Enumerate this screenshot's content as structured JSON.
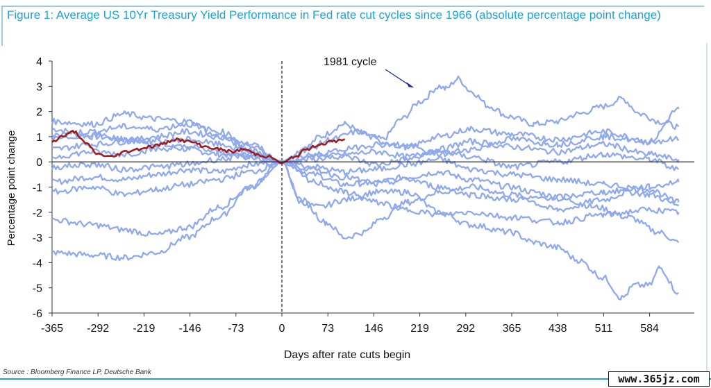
{
  "figure": {
    "title": "Figure 1: Average US 10Yr Treasury Yield Performance in Fed rate cut cycles since 1966 (absolute percentage point change)",
    "source": "Source : Bloomberg Finance LP, Deutsche Bank",
    "watermark": "www.365jz.com"
  },
  "colors": {
    "title": "#1ea3d6",
    "cycle_lines": "#8fa9ec",
    "average_line": "#a01c1c",
    "annotation_arrow": "#1f2a9e"
  },
  "chart_data": {
    "type": "line",
    "title": "",
    "xlabel": "Days after rate cuts begin",
    "ylabel": "Percentage point change",
    "xlim": [
      -380,
      635
    ],
    "ylim": [
      -6,
      4
    ],
    "x_ticks": [
      -365,
      -292,
      -219,
      -146,
      -73,
      0,
      73,
      146,
      219,
      292,
      365,
      438,
      511,
      584
    ],
    "x_tick_labels": [
      "-365",
      "-292",
      "-219",
      "-146",
      "-73",
      "0",
      "73",
      "146",
      "219",
      "292",
      "365",
      "438",
      "511",
      "584"
    ],
    "y_ticks": [
      4,
      3,
      2,
      1,
      0,
      -1,
      -2,
      -3,
      -4,
      -5,
      -6
    ],
    "y_tick_labels": [
      "4",
      "3",
      "2",
      "1",
      "0",
      "-1",
      "-2",
      "-3",
      "-4",
      "-5",
      "-6"
    ],
    "reference_lines": [
      {
        "axis": "x",
        "value": 0,
        "style": "dashed"
      },
      {
        "axis": "y",
        "value": 0,
        "style": "solid"
      }
    ],
    "annotations": [
      {
        "text": "1981 cycle",
        "points_to": {
          "x": 210,
          "y": 3.0
        }
      }
    ],
    "legend": "none",
    "grid": false,
    "series": [
      {
        "x": [
          -365,
          -300,
          -250,
          -200,
          -150,
          -100,
          -50,
          0,
          40,
          60,
          100,
          130,
          160,
          190,
          220,
          250,
          260,
          280,
          300,
          330,
          360,
          400,
          438,
          470,
          511,
          540,
          570,
          600,
          630
        ],
        "values": [
          1.3,
          1.0,
          0.9,
          0.7,
          0.5,
          0.3,
          0.2,
          0,
          0.6,
          1.0,
          1.5,
          1.1,
          0.9,
          1.7,
          2.4,
          3.0,
          2.9,
          3.3,
          2.8,
          2.2,
          1.8,
          1.5,
          1.6,
          1.9,
          2.2,
          2.5,
          1.9,
          1.6,
          1.4
        ]
      },
      {
        "x": [
          -365,
          -300,
          -250,
          -200,
          -150,
          -100,
          -50,
          0,
          50,
          100,
          150,
          200,
          250,
          300,
          365,
          400,
          450,
          500,
          550,
          600,
          630
        ],
        "values": [
          -0.8,
          -0.6,
          -0.7,
          -0.5,
          -0.3,
          -0.4,
          -0.1,
          0,
          -0.5,
          -0.9,
          -0.8,
          -0.6,
          -0.4,
          -0.7,
          -1.0,
          -1.2,
          -1.5,
          -1.8,
          -2.2,
          -2.8,
          -3.2
        ]
      },
      {
        "x": [
          -365,
          -300,
          -250,
          -200,
          -150,
          -100,
          -50,
          0,
          30,
          60,
          100,
          150,
          200,
          250,
          300,
          365,
          400,
          438,
          470,
          511,
          540,
          560,
          584,
          600,
          630
        ],
        "values": [
          -3.6,
          -3.7,
          -3.8,
          -3.6,
          -3.0,
          -2.2,
          -1.0,
          0,
          -1.6,
          -1.8,
          -1.5,
          -1.2,
          -1.2,
          -2.0,
          -2.5,
          -2.8,
          -3.2,
          -3.4,
          -3.9,
          -4.6,
          -5.4,
          -4.9,
          -4.9,
          -4.2,
          -5.2
        ]
      },
      {
        "x": [
          -365,
          -300,
          -250,
          -200,
          -150,
          -100,
          -50,
          0,
          30,
          70,
          100,
          130,
          160,
          200,
          250,
          300,
          365,
          438,
          511,
          550,
          584,
          630
        ],
        "values": [
          -2.3,
          -2.5,
          -2.7,
          -2.9,
          -2.6,
          -1.8,
          -1.0,
          0,
          -1.5,
          -2.4,
          -3.0,
          -2.8,
          -2.2,
          -1.6,
          -1.2,
          -1.0,
          -1.3,
          -1.9,
          -1.5,
          -1.2,
          -1.3,
          -1.7
        ]
      },
      {
        "x": [
          -365,
          -300,
          -250,
          -200,
          -150,
          -100,
          -50,
          0,
          40,
          80,
          120,
          160,
          200,
          250,
          300,
          365,
          438,
          511,
          584,
          630
        ],
        "values": [
          1.6,
          1.5,
          1.9,
          1.7,
          1.6,
          1.0,
          0.5,
          0,
          0.5,
          0.9,
          1.2,
          0.8,
          0.6,
          1.0,
          1.3,
          1.1,
          0.9,
          1.2,
          0.8,
          2.1
        ]
      },
      {
        "x": [
          -365,
          -300,
          -250,
          -200,
          -150,
          -100,
          -50,
          0,
          50,
          100,
          150,
          200,
          250,
          300,
          365,
          438,
          511,
          584,
          630
        ],
        "values": [
          0.5,
          0.7,
          0.8,
          1.0,
          1.2,
          1.0,
          0.6,
          0,
          0.1,
          0.3,
          0.4,
          0.2,
          0.5,
          0.8,
          0.6,
          0.4,
          0.7,
          0.3,
          0.1
        ]
      },
      {
        "x": [
          -365,
          -300,
          -250,
          -200,
          -150,
          -100,
          -50,
          0,
          50,
          100,
          150,
          200,
          250,
          300,
          365,
          438,
          511,
          584,
          630
        ],
        "values": [
          -1.2,
          -1.0,
          -1.3,
          -1.1,
          -0.9,
          -0.7,
          -0.4,
          0,
          -0.2,
          -0.4,
          -0.3,
          -0.1,
          0.1,
          -0.3,
          -0.5,
          -0.7,
          -0.9,
          -1.1,
          -1.6
        ]
      },
      {
        "x": [
          -365,
          -300,
          -250,
          -200,
          -150,
          -100,
          -50,
          0,
          50,
          100,
          150,
          200,
          250,
          300,
          365,
          438,
          511,
          584,
          630
        ],
        "values": [
          0.2,
          0.4,
          0.3,
          0.5,
          0.6,
          0.4,
          0.2,
          0,
          0.3,
          0.2,
          -0.1,
          0.1,
          0.4,
          0.2,
          -0.2,
          0.0,
          0.3,
          0.1,
          -0.3
        ]
      },
      {
        "x": [
          -365,
          -300,
          -250,
          -200,
          -150,
          -100,
          -50,
          0,
          50,
          100,
          150,
          200,
          250,
          300,
          365,
          438,
          511,
          584,
          630
        ],
        "values": [
          1.1,
          1.2,
          1.4,
          1.3,
          1.5,
          1.2,
          0.7,
          0,
          -0.3,
          -0.6,
          -0.9,
          -0.7,
          -1.0,
          -1.3,
          -1.5,
          -1.4,
          -1.2,
          -1.0,
          -0.8
        ]
      },
      {
        "x": [
          -365,
          -300,
          -250,
          -200,
          -150,
          -100,
          -50,
          0,
          50,
          100,
          150,
          200,
          250,
          300,
          365,
          438,
          511,
          584,
          630
        ],
        "values": [
          -0.2,
          -0.1,
          -0.3,
          -0.2,
          -0.1,
          0.1,
          0.3,
          0,
          -0.8,
          -1.2,
          -1.6,
          -1.9,
          -2.1,
          -2.0,
          -2.2,
          -2.4,
          -2.1,
          -1.9,
          -2.0
        ]
      },
      {
        "x": [
          -365,
          -300,
          -250,
          -200,
          -150,
          -100,
          -50,
          0,
          50,
          100,
          150,
          200,
          250,
          300,
          365,
          438,
          511,
          584,
          630
        ],
        "values": [
          0.9,
          1.1,
          0.9,
          0.8,
          0.9,
          0.7,
          0.4,
          0,
          0.2,
          0.5,
          0.7,
          0.6,
          0.3,
          0.5,
          0.9,
          0.7,
          1.0,
          0.8,
          0.9
        ]
      },
      {
        "name": "Average",
        "x": [
          -365,
          -350,
          -330,
          -310,
          -292,
          -270,
          -250,
          -230,
          -210,
          -190,
          -170,
          -146,
          -120,
          -100,
          -80,
          -60,
          -40,
          -20,
          0,
          20,
          40,
          60,
          80,
          100
        ],
        "values": [
          0.8,
          1.0,
          1.2,
          0.7,
          0.3,
          0.2,
          0.4,
          0.5,
          0.6,
          0.7,
          0.9,
          0.8,
          0.6,
          0.5,
          0.4,
          0.5,
          0.3,
          0.2,
          -0.05,
          0.2,
          0.5,
          0.7,
          0.8,
          0.9
        ]
      }
    ]
  }
}
